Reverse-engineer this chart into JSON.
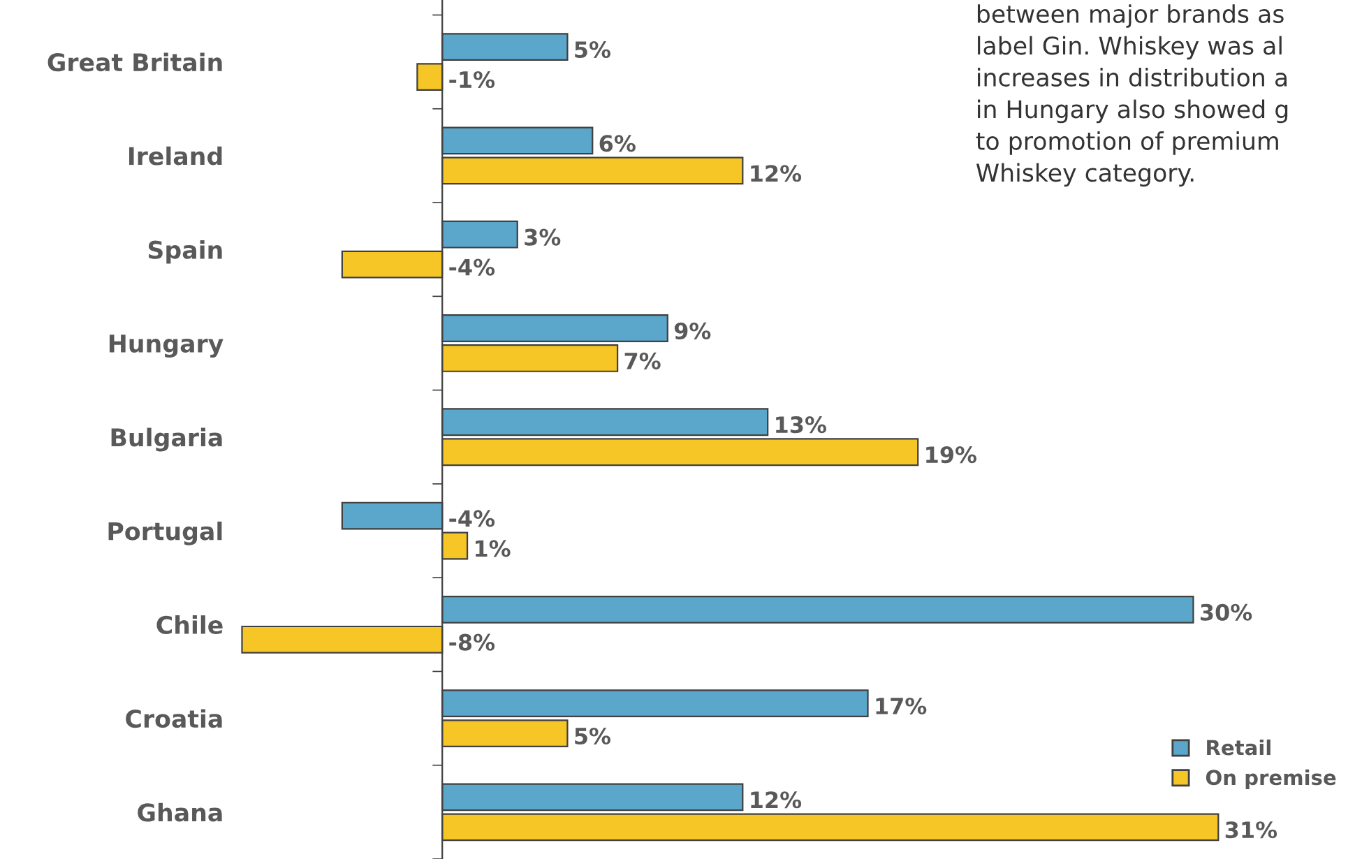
{
  "chart_data": {
    "type": "bar",
    "orientation": "horizontal",
    "categories": [
      "Great Britain",
      "Ireland",
      "Spain",
      "Hungary",
      "Bulgaria",
      "Portugal",
      "Chile",
      "Croatia",
      "Ghana"
    ],
    "series": [
      {
        "name": "Retail",
        "color": "#5ba6cb",
        "values": [
          5,
          6,
          3,
          9,
          13,
          -4,
          30,
          17,
          12
        ],
        "value_labels": [
          "5%",
          "6%",
          "3%",
          "9%",
          "13%",
          "-4%",
          "30%",
          "17%",
          "12%"
        ]
      },
      {
        "name": "On premise",
        "color": "#f6c526",
        "values": [
          -1,
          12,
          -4,
          7,
          19,
          1,
          -8,
          5,
          31
        ],
        "value_labels": [
          "-1%",
          "12%",
          "-4%",
          "7%",
          "19%",
          "1%",
          "-8%",
          "5%",
          "31%"
        ]
      }
    ],
    "legend": "bottom right",
    "annotations": [
      "between major brands as\nlabel Gin. Whiskey was al\nincreases in distribution a\nin Hungary also showed g\nto promotion of premium\nWhiskey category."
    ]
  }
}
